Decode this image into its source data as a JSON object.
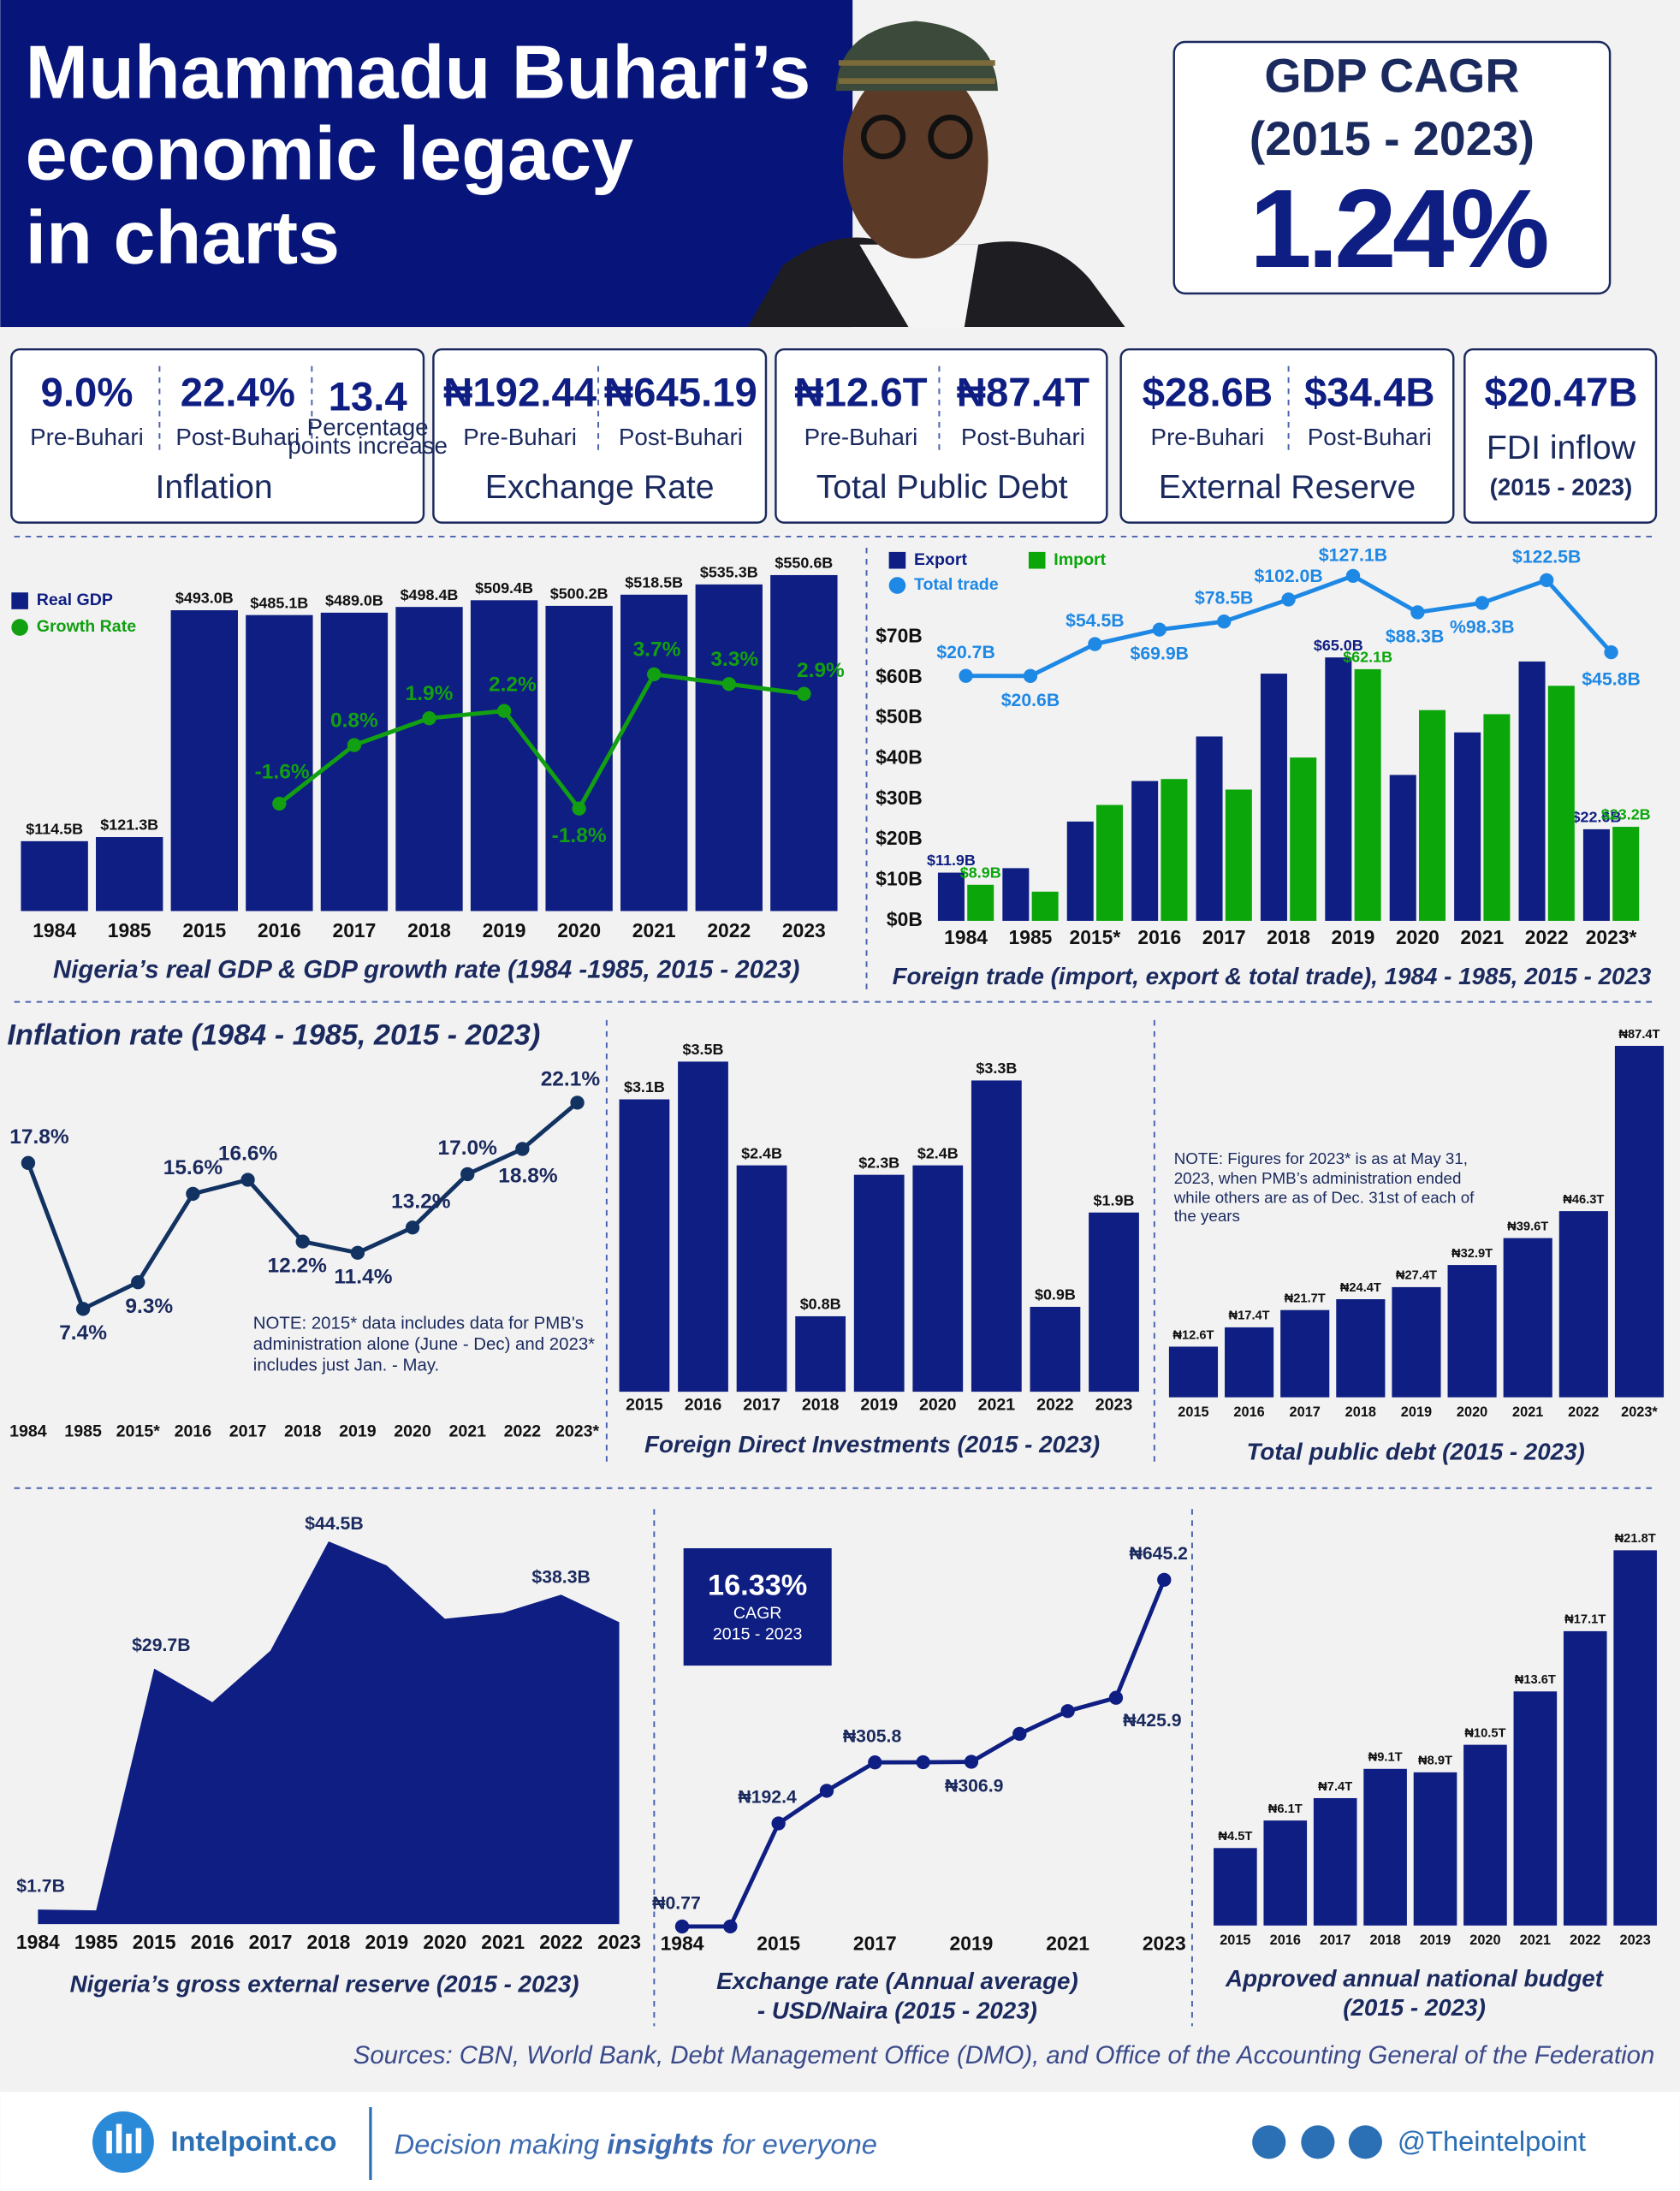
{
  "header": {
    "title_lines": [
      "Muhammadu Buhari’s",
      "economic legacy",
      "in charts"
    ],
    "gdp_cagr": {
      "label": "GDP CAGR",
      "period": "(2015 - 2023)",
      "value": "1.24%"
    }
  },
  "stats": [
    {
      "title": "Inflation",
      "items": [
        {
          "value": "9.0%",
          "label": "Pre-Buhari"
        },
        {
          "value": "22.4%",
          "label": "Post-Buhari"
        },
        {
          "value": "13.4",
          "label": [
            "Percentage",
            "points increase"
          ]
        }
      ]
    },
    {
      "title": "Exchange Rate",
      "items": [
        {
          "value": "₦192.44",
          "label": "Pre-Buhari"
        },
        {
          "value": "₦645.19",
          "label": "Post-Buhari"
        }
      ]
    },
    {
      "title": "Total Public Debt",
      "items": [
        {
          "value": "₦12.6T",
          "label": "Pre-Buhari"
        },
        {
          "value": "₦87.4T",
          "label": "Post-Buhari"
        }
      ]
    },
    {
      "title": "External Reserve",
      "items": [
        {
          "value": "$28.6B",
          "label": "Pre-Buhari"
        },
        {
          "value": "$34.4B",
          "label": "Post-Buhari"
        }
      ]
    }
  ],
  "fdi_stat": {
    "value": "$20.47B",
    "label": "FDI inflow",
    "period": "(2015 - 2023)"
  },
  "chart_data": [
    {
      "type": "bar",
      "title": "Nigeria’s real GDP & GDP growth rate (1984 -1985, 2015 - 2023)",
      "categories": [
        "1984",
        "1985",
        "2015",
        "2016",
        "2017",
        "2018",
        "2019",
        "2020",
        "2021",
        "2022",
        "2023"
      ],
      "series": [
        {
          "name": "Real GDP",
          "color": "#0f1e82",
          "values": [
            114.5,
            121.3,
            493.0,
            485.1,
            489.0,
            498.4,
            509.4,
            500.2,
            518.5,
            535.3,
            550.6
          ],
          "value_labels": [
            "$114.5B",
            "$121.3B",
            "$493.0B",
            "$485.1B",
            "$489.0B",
            "$498.4B",
            "$509.4B",
            "$500.2B",
            "$518.5B",
            "$535.3B",
            "$550.6B"
          ]
        },
        {
          "name": "Growth Rate",
          "type": "line",
          "axis": "y2",
          "color": "#12a012",
          "values": [
            null,
            null,
            null,
            -1.6,
            0.8,
            1.9,
            2.2,
            -1.8,
            3.7,
            3.3,
            2.9
          ],
          "value_labels": [
            null,
            null,
            null,
            "-1.6%",
            "0.8%",
            "1.9%",
            "2.2%",
            "-1.8%",
            "3.7%",
            "3.3%",
            "2.9%"
          ]
        }
      ],
      "ylim": [
        0,
        600
      ],
      "y2lim": [
        -6,
        9
      ],
      "legend": "upper left"
    },
    {
      "type": "bar",
      "title": "Foreign trade (import, export & total trade), 1984 - 1985, 2015 - 2023",
      "categories": [
        "1984",
        "1985",
        "2015*",
        "2016",
        "2017",
        "2018",
        "2019",
        "2020",
        "2021",
        "2022",
        "2023*"
      ],
      "series": [
        {
          "name": "Export",
          "color": "#0f1e82",
          "values": [
            11.9,
            13,
            24.5,
            34.5,
            45.5,
            61,
            65.0,
            36,
            46.5,
            64,
            22.6
          ],
          "value_labels": [
            "$11.9B",
            null,
            null,
            null,
            null,
            null,
            "$65.0B",
            null,
            null,
            null,
            "$22.6B"
          ]
        },
        {
          "name": "Import",
          "color": "#0aa60a",
          "values": [
            8.9,
            7.2,
            28.6,
            35,
            32.4,
            40.3,
            62.1,
            52,
            51,
            58,
            23.2
          ],
          "value_labels": [
            "$8.9B",
            null,
            null,
            null,
            null,
            null,
            "$62.1B",
            null,
            null,
            null,
            "$23.2B"
          ]
        },
        {
          "name": "Total trade",
          "type": "line",
          "axis": "y2",
          "color": "#1e88e5",
          "values": [
            20.7,
            20.6,
            54.5,
            69.9,
            78.5,
            102.0,
            127.1,
            88.3,
            98.3,
            122.5,
            45.8
          ],
          "value_labels": [
            "$20.7B",
            "$20.6B",
            "$54.5B",
            "$69.9B",
            "$78.5B",
            "$102.0B",
            "$127.1B",
            "$88.3B",
            "%98.3B",
            "$122.5B",
            "$45.8B"
          ]
        }
      ],
      "ylim": [
        0,
        70
      ],
      "yticks": [
        {
          "value": 0,
          "label": "$0B"
        },
        {
          "value": 10,
          "label": "$10B"
        },
        {
          "value": 20,
          "label": "$20B"
        },
        {
          "value": 30,
          "label": "$30B"
        },
        {
          "value": 40,
          "label": "$40B"
        },
        {
          "value": 50,
          "label": "$50B"
        },
        {
          "value": 60,
          "label": "$60B"
        },
        {
          "value": 70,
          "label": "$70B"
        }
      ],
      "y2lim": [
        -240,
        160
      ],
      "legend": "upper left"
    },
    {
      "type": "line",
      "title": "Inflation rate (1984 - 1985, 2015 - 2023)",
      "categories": [
        "1984",
        "1985",
        "2015*",
        "2016",
        "2017",
        "2018",
        "2019",
        "2020",
        "2021",
        "2022",
        "2023*"
      ],
      "values": [
        17.8,
        7.4,
        9.3,
        15.6,
        16.6,
        12.2,
        11.4,
        13.2,
        17.0,
        18.8,
        22.1
      ],
      "value_labels": [
        "17.8%",
        "7.4%",
        "9.3%",
        "15.6%",
        "16.6%",
        "12.2%",
        "11.4%",
        "13.2%",
        "17.0%",
        "18.8%",
        "22.1%"
      ],
      "color": "#123262",
      "ylim": [
        0,
        25
      ],
      "note": "NOTE: 2015* data includes data for PMB's administration alone (June - Dec) and 2023* includes just Jan. - May."
    },
    {
      "type": "bar",
      "title": "Foreign Direct Investments (2015 - 2023)",
      "categories": [
        "2015",
        "2016",
        "2017",
        "2018",
        "2019",
        "2020",
        "2021",
        "2022",
        "2023"
      ],
      "values": [
        3.1,
        3.5,
        2.4,
        0.8,
        2.3,
        2.4,
        3.3,
        0.9,
        1.9
      ],
      "value_labels": [
        "$3.1B",
        "$3.5B",
        "$2.4B",
        "$0.8B",
        "$2.3B",
        "$2.4B",
        "$3.3B",
        "$0.9B",
        "$1.9B"
      ],
      "color": "#0f1e82",
      "ylim": [
        0,
        3.6
      ]
    },
    {
      "type": "bar",
      "title": "Total public debt (2015 - 2023)",
      "categories": [
        "2015",
        "2016",
        "2017",
        "2018",
        "2019",
        "2020",
        "2021",
        "2022",
        "2023*"
      ],
      "values": [
        12.6,
        17.4,
        21.7,
        24.4,
        27.4,
        32.9,
        39.6,
        46.3,
        87.4
      ],
      "value_labels": [
        "₦12.6T",
        "₦17.4T",
        "₦21.7T",
        "₦24.4T",
        "₦27.4T",
        "₦32.9T",
        "₦39.6T",
        "₦46.3T",
        "₦87.4T"
      ],
      "color": "#0f1e82",
      "ylim": [
        0,
        90
      ],
      "note": "NOTE: Figures for 2023* is as at May 31, 2023, when PMB’s administration ended while others are as of Dec. 31st of each of the years"
    },
    {
      "type": "area",
      "title": "Nigeria’s gross external reserve (2015 - 2023)",
      "categories": [
        "1984",
        "1985",
        "2015",
        "2016",
        "2017",
        "2018",
        "2019",
        "2020",
        "2021",
        "2022",
        "2023"
      ],
      "values": [
        1.7,
        1.6,
        29.7,
        25.8,
        31.8,
        44.5,
        41.7,
        35.5,
        36.2,
        38.3,
        35.1
      ],
      "value_labels": [
        "$1.7B",
        null,
        "$29.7B",
        null,
        null,
        "$44.5B",
        null,
        null,
        null,
        "$38.3B",
        null
      ],
      "color": "#0f1e82",
      "ylim": [
        0,
        45
      ]
    },
    {
      "type": "line",
      "title": [
        "Exchange rate (Annual average)",
        "- USD/Naira (2015 - 2023)"
      ],
      "categories": [
        "1984",
        null,
        "2015",
        null,
        "2017",
        null,
        "2019",
        null,
        "2021",
        null,
        "2023"
      ],
      "values": [
        0.77,
        0.89,
        192.4,
        253,
        305.8,
        306.1,
        306.9,
        358.8,
        401.2,
        425.9,
        645.2
      ],
      "value_labels": [
        "₦0.77",
        null,
        "₦192.4",
        null,
        "₦305.8",
        null,
        "₦306.9",
        null,
        null,
        "₦425.9",
        "₦645.2"
      ],
      "color": "#0f1e82",
      "ylim": [
        0,
        700
      ],
      "annotation": {
        "value": "16.33%",
        "label": "CAGR",
        "period": "2015 - 2023"
      }
    },
    {
      "type": "bar",
      "title": [
        "Approved annual national budget",
        "(2015 - 2023)"
      ],
      "categories": [
        "2015",
        "2016",
        "2017",
        "2018",
        "2019",
        "2020",
        "2021",
        "2022",
        "2023"
      ],
      "values": [
        4.5,
        6.1,
        7.4,
        9.1,
        8.9,
        10.5,
        13.6,
        17.1,
        21.8
      ],
      "value_labels": [
        "₦4.5T",
        "₦6.1T",
        "₦7.4T",
        "₦9.1T",
        "₦8.9T",
        "₦10.5T",
        "₦13.6T",
        "₦17.1T",
        "₦21.8T"
      ],
      "color": "#0f1e82",
      "ylim": [
        0,
        22
      ]
    }
  ],
  "sources": "Sources: CBN, World Bank, Debt Management Office (DMO), and Office of the Accounting General of the Federation",
  "footer": {
    "brand": "Intelpoint.co",
    "tagline": [
      "Decision making ",
      "insights",
      " for everyone"
    ],
    "handle": "@Theintelpoint"
  }
}
